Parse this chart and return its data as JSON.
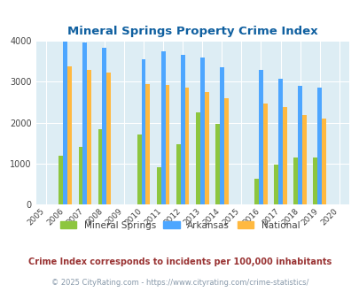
{
  "title": "Mineral Springs Property Crime Index",
  "title_color": "#1060a0",
  "years": [
    2005,
    2006,
    2007,
    2008,
    2009,
    2010,
    2011,
    2012,
    2013,
    2014,
    2015,
    2016,
    2017,
    2018,
    2019,
    2020
  ],
  "mineral_springs": [
    null,
    1200,
    1400,
    1850,
    null,
    1700,
    900,
    1480,
    2250,
    1980,
    null,
    620,
    980,
    1150,
    1150,
    null
  ],
  "arkansas": [
    null,
    3980,
    3970,
    3840,
    null,
    3550,
    3750,
    3650,
    3600,
    3360,
    null,
    3290,
    3080,
    2910,
    2860,
    null
  ],
  "national": [
    null,
    3370,
    3280,
    3220,
    null,
    2940,
    2920,
    2860,
    2740,
    2590,
    null,
    2460,
    2380,
    2180,
    2110,
    null
  ],
  "mineral_springs_color": "#8dc63f",
  "arkansas_color": "#4da6ff",
  "national_color": "#ffb940",
  "bg_color": "#ddedf4",
  "ylim": [
    0,
    4000
  ],
  "yticks": [
    0,
    1000,
    2000,
    3000,
    4000
  ],
  "subtitle": "Crime Index corresponds to incidents per 100,000 inhabitants",
  "subtitle_color": "#993333",
  "footer": "© 2025 CityRating.com - https://www.cityrating.com/crime-statistics/",
  "footer_color": "#8899aa",
  "legend_labels": [
    "Mineral Springs",
    "Arkansas",
    "National"
  ],
  "bar_width": 0.22,
  "grid_color": "#ffffff"
}
